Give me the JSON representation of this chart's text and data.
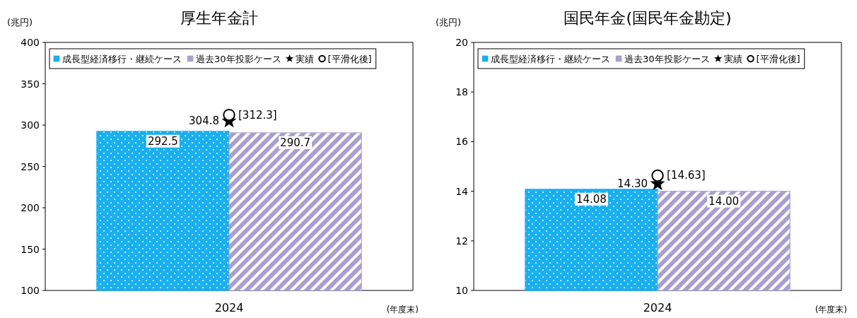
{
  "chart_data": [
    {
      "type": "bar",
      "title": "厚生年金計",
      "ylabel": "(兆円)",
      "xlabel": "(年度末)",
      "categories": [
        "2024"
      ],
      "ylim": [
        100,
        400
      ],
      "yticks": [
        100,
        150,
        200,
        250,
        300,
        350,
        400
      ],
      "legend": "top",
      "grid": false,
      "series": [
        {
          "name": "成長型経済移行・継続ケース",
          "color": "#1ab0ee",
          "values": [
            292.5
          ],
          "value_labels": [
            "292.5"
          ]
        },
        {
          "name": "過去30年投影ケース",
          "color": "#a99fcf",
          "values": [
            290.7
          ],
          "value_labels": [
            "290.7"
          ]
        },
        {
          "name": "実績",
          "type": "scatter",
          "marker": "star",
          "color": "#000000",
          "values": [
            304.8
          ],
          "value_labels": [
            "304.8"
          ]
        },
        {
          "name": "[平滑化後]",
          "type": "scatter",
          "marker": "circle",
          "color": "#000000",
          "values": [
            312.3
          ],
          "value_labels": [
            "[312.3]"
          ]
        }
      ]
    },
    {
      "type": "bar",
      "title": "国民年金(国民年金勘定)",
      "ylabel": "(兆円)",
      "xlabel": "(年度末)",
      "categories": [
        "2024"
      ],
      "ylim": [
        10,
        20
      ],
      "yticks": [
        10,
        12,
        14,
        16,
        18,
        20
      ],
      "legend": "top",
      "grid": false,
      "series": [
        {
          "name": "成長型経済移行・継続ケース",
          "color": "#1ab0ee",
          "values": [
            14.08
          ],
          "value_labels": [
            "14.08"
          ]
        },
        {
          "name": "過去30年投影ケース",
          "color": "#a99fcf",
          "values": [
            14.0
          ],
          "value_labels": [
            "14.00"
          ]
        },
        {
          "name": "実績",
          "type": "scatter",
          "marker": "star",
          "color": "#000000",
          "values": [
            14.3
          ],
          "value_labels": [
            "14.30"
          ]
        },
        {
          "name": "[平滑化後]",
          "type": "scatter",
          "marker": "circle",
          "color": "#000000",
          "values": [
            14.63
          ],
          "value_labels": [
            "[14.63]"
          ]
        }
      ]
    }
  ]
}
